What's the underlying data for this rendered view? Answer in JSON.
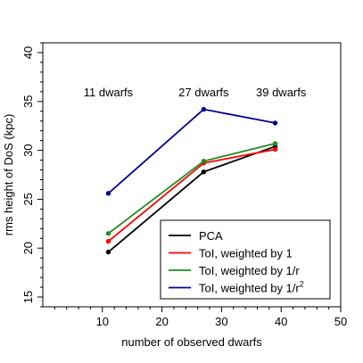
{
  "chart_data": {
    "type": "line",
    "xlabel": "number of observed dwarfs",
    "ylabel": "rms height of DoS (kpc)",
    "xlim": [
      0,
      50
    ],
    "ylim": [
      14,
      41
    ],
    "xticks": [
      10,
      20,
      30,
      40,
      50
    ],
    "yticks": [
      15,
      20,
      25,
      30,
      35,
      40
    ],
    "x": [
      11,
      27,
      39
    ],
    "series": [
      {
        "name": "PCA",
        "color": "#000000",
        "values": [
          19.6,
          27.8,
          30.4
        ]
      },
      {
        "name": "ToI, weighted by 1",
        "color": "#ff0000",
        "values": [
          20.7,
          28.7,
          30.1
        ]
      },
      {
        "name": "ToI, weighted by 1/r",
        "color": "#228b22",
        "values": [
          21.5,
          28.9,
          30.7
        ]
      },
      {
        "name": "ToI, weighted by 1/r",
        "name_sup": "2",
        "color": "#00008b",
        "values": [
          25.6,
          34.2,
          32.8
        ]
      }
    ],
    "annotations": [
      {
        "text": "11 dwarfs",
        "x": 11,
        "y": 36
      },
      {
        "text": "27 dwarfs",
        "x": 27,
        "y": 36
      },
      {
        "text": "39 dwarfs",
        "x": 40,
        "y": 36
      }
    ],
    "legend_position": "bottom-right",
    "grid": false
  }
}
